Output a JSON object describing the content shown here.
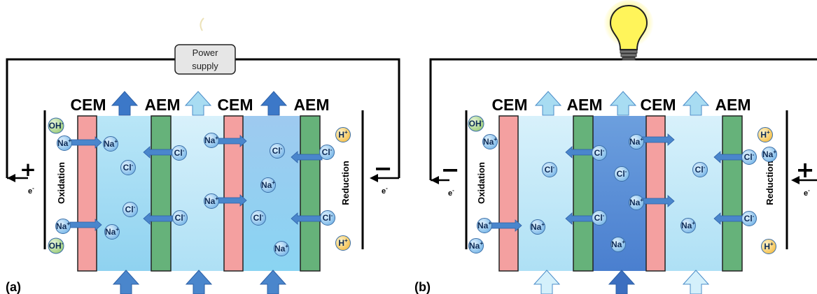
{
  "colors": {
    "cem": "#f4a0a0",
    "aem": "#66b27a",
    "ion": "#8ec6ee",
    "proton": "#fbd36a",
    "hydroxide": "#b8dc9a",
    "arrow_dark": "#3c78c8",
    "arrow_light": "#a8dcf2"
  },
  "panel_a": {
    "label": "(a)",
    "power_supply": {
      "line1": "Power",
      "line2": "supply"
    },
    "membranes": [
      "CEM",
      "AEM",
      "CEM",
      "AEM"
    ],
    "left_electrode": {
      "sign": "+",
      "process": "Oxidation",
      "electron": "e"
    },
    "right_electrode": {
      "sign": "−",
      "process": "Reduction",
      "electron": "e"
    },
    "ions": {
      "na": "Na",
      "cl": "Cl",
      "h": "H",
      "oh": "OH",
      "plus": "+",
      "minus": "-"
    }
  },
  "panel_b": {
    "label": "(b)",
    "membranes": [
      "CEM",
      "AEM",
      "CEM",
      "AEM"
    ],
    "left_electrode": {
      "sign": "−",
      "process": "Oxidation",
      "electron": "e"
    },
    "right_electrode": {
      "sign": "+",
      "process": "Reduction",
      "electron": "e"
    },
    "device": "light-bulb"
  }
}
